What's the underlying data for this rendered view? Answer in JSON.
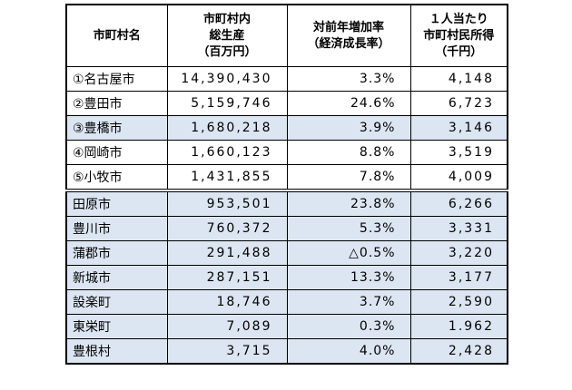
{
  "header": {
    "name": "市町村名",
    "gdp": [
      "市町村内",
      "総生産",
      "（百万円）"
    ],
    "growth": [
      "対前年増加率",
      "（経済成長率）"
    ],
    "income": [
      "１人当たり",
      "市町村民所得",
      "（千円）"
    ]
  },
  "rows": [
    {
      "name": "①名古屋市",
      "gdp": "14,390,430",
      "growth": "3.3%",
      "income": "4,148",
      "shade": false
    },
    {
      "name": "②豊田市",
      "gdp": "5,159,746",
      "growth": "24.6%",
      "income": "6,723",
      "shade": false
    },
    {
      "name": "③豊橋市",
      "gdp": "1,680,218",
      "growth": "3.9%",
      "income": "3,146",
      "shade": true
    },
    {
      "name": "④岡崎市",
      "gdp": "1,660,123",
      "growth": "8.8%",
      "income": "3,519",
      "shade": false
    },
    {
      "name": "⑤小牧市",
      "gdp": "1,431,855",
      "growth": "7.8%",
      "income": "4,009",
      "shade": false
    },
    {
      "name": "田原市",
      "gdp": "953,501",
      "growth": "23.8%",
      "income": "6,266",
      "shade": true
    },
    {
      "name": "豊川市",
      "gdp": "760,372",
      "growth": "5.3%",
      "income": "3,331",
      "shade": true
    },
    {
      "name": "蒲郡市",
      "gdp": "291,488",
      "growth": "△0.5%",
      "income": "3,220",
      "shade": true
    },
    {
      "name": "新城市",
      "gdp": "287,151",
      "growth": "13.3%",
      "income": "3,177",
      "shade": true
    },
    {
      "name": "設楽町",
      "gdp": "18,746",
      "growth": "3.7%",
      "income": "2,590",
      "shade": true
    },
    {
      "name": "東栄町",
      "gdp": "7,089",
      "growth": "0.3%",
      "income": "1.962",
      "shade": true
    },
    {
      "name": "豊根村",
      "gdp": "3,715",
      "growth": "4.0%",
      "income": "2,428",
      "shade": true
    }
  ]
}
